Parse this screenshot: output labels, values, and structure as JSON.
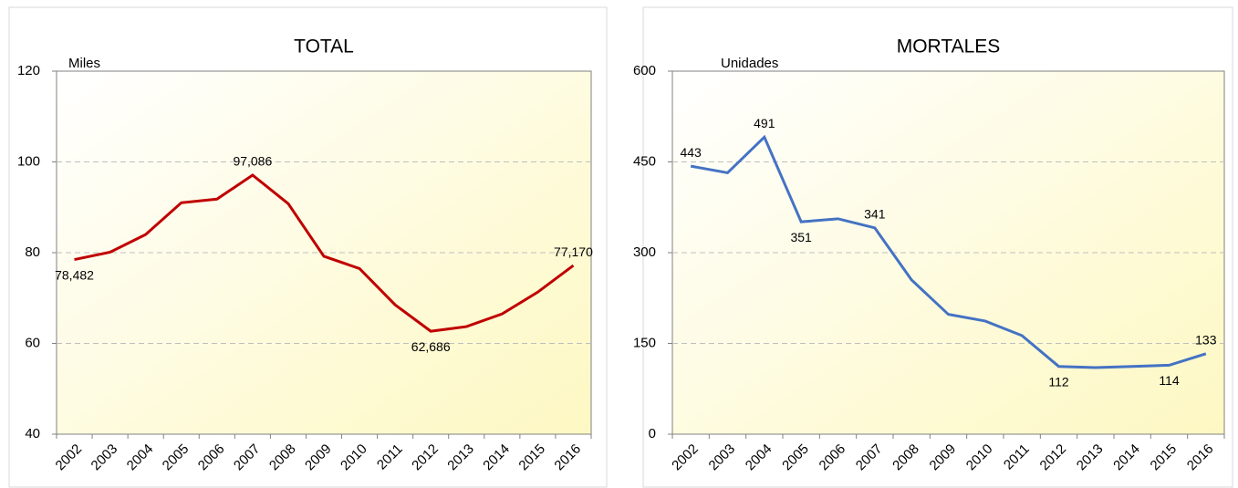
{
  "chart_data": [
    {
      "type": "line",
      "title": "TOTAL",
      "y_label": "Miles",
      "categories": [
        "2002",
        "2003",
        "2004",
        "2005",
        "2006",
        "2007",
        "2008",
        "2009",
        "2010",
        "2011",
        "2012",
        "2013",
        "2014",
        "2015",
        "2016"
      ],
      "series": [
        {
          "name": "TOTAL",
          "color": "#c00000",
          "values": [
            78.482,
            80.1,
            84,
            91,
            91.8,
            97.086,
            90.8,
            79.2,
            76.5,
            68.5,
            62.686,
            63.7,
            66.5,
            71.3,
            77.17
          ],
          "value_labels": [
            "78,482",
            null,
            null,
            null,
            null,
            "97,086",
            null,
            null,
            null,
            null,
            "62,686",
            null,
            null,
            null,
            "77,170"
          ]
        }
      ],
      "ylim": [
        40,
        120
      ],
      "yticks": [
        40,
        60,
        80,
        100,
        120
      ],
      "grid": true
    },
    {
      "type": "line",
      "title": "MORTALES",
      "y_label": "Unidades",
      "categories": [
        "2002",
        "2003",
        "2004",
        "2005",
        "2006",
        "2007",
        "2008",
        "2009",
        "2010",
        "2011",
        "2012",
        "2013",
        "2014",
        "2015",
        "2016"
      ],
      "series": [
        {
          "name": "MORTALES",
          "color": "#4472c4",
          "values": [
            443,
            432,
            491,
            351,
            356,
            341,
            255,
            198,
            187,
            163,
            112,
            110,
            112,
            114,
            133
          ],
          "value_labels": [
            "443",
            null,
            "491",
            "351",
            null,
            "341",
            null,
            null,
            null,
            null,
            "112",
            null,
            null,
            "114",
            "133"
          ]
        }
      ],
      "ylim": [
        0,
        600
      ],
      "yticks": [
        0,
        150,
        300,
        450,
        600
      ],
      "grid": true
    }
  ]
}
